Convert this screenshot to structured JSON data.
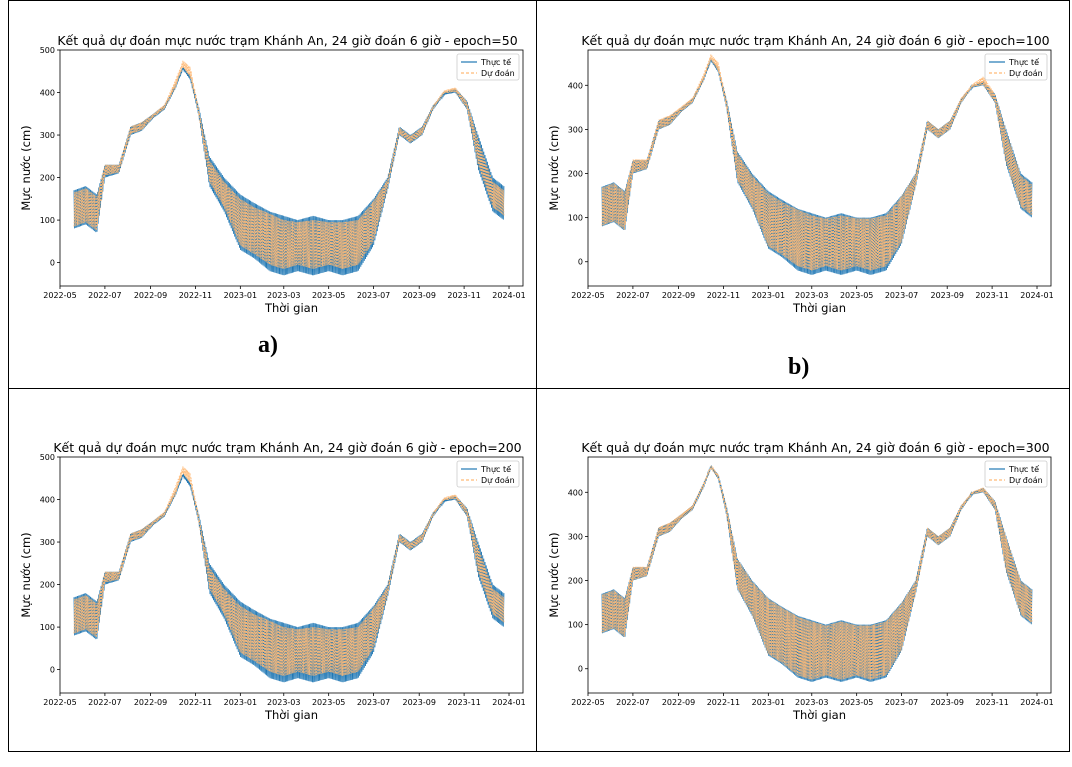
{
  "subfigure_labels": [
    "a)",
    "b)"
  ],
  "chart_data": [
    {
      "type": "line",
      "title": "Kết quả dự đoán mực nước trạm Khánh An, 24 giờ đoán 6 giờ - epoch=50",
      "xlabel": "Thời gian",
      "ylabel": "Mực nước (cm)",
      "xlim": [
        "2022-05-01",
        "2024-01-20"
      ],
      "ylim": [
        -55,
        500
      ],
      "x_ticks": [
        "2022-05",
        "2022-07",
        "2022-09",
        "2022-11",
        "2023-01",
        "2023-03",
        "2023-05",
        "2023-07",
        "2023-09",
        "2023-11",
        "2024-01"
      ],
      "y_ticks": [
        0,
        100,
        200,
        300,
        400,
        500
      ],
      "legend_position": "top-right",
      "series": [
        {
          "name": "Thực tế",
          "style": "solid",
          "color": "#1f77b4"
        },
        {
          "name": "Dự đoán",
          "style": "dashed",
          "color": "#ffbb78"
        }
      ],
      "x": [
        "2022-05-20",
        "2022-06-05",
        "2022-06-20",
        "2022-07-01",
        "2022-07-20",
        "2022-08-05",
        "2022-08-20",
        "2022-09-05",
        "2022-09-20",
        "2022-10-05",
        "2022-10-15",
        "2022-10-25",
        "2022-11-05",
        "2022-11-20",
        "2022-12-10",
        "2023-01-01",
        "2023-01-20",
        "2023-02-10",
        "2023-03-01",
        "2023-03-20",
        "2023-04-10",
        "2023-05-01",
        "2023-05-20",
        "2023-06-10",
        "2023-07-01",
        "2023-07-20",
        "2023-08-05",
        "2023-08-20",
        "2023-09-05",
        "2023-09-20",
        "2023-10-05",
        "2023-10-20",
        "2023-11-05",
        "2023-11-20",
        "2023-12-10",
        "2023-12-25"
      ],
      "actual_max": [
        170,
        180,
        160,
        230,
        230,
        320,
        330,
        350,
        370,
        420,
        460,
        440,
        370,
        250,
        200,
        160,
        140,
        120,
        110,
        100,
        110,
        100,
        100,
        110,
        150,
        200,
        320,
        300,
        320,
        370,
        400,
        410,
        380,
        300,
        200,
        180
      ],
      "actual_min": [
        80,
        90,
        70,
        200,
        210,
        300,
        310,
        340,
        360,
        410,
        455,
        430,
        350,
        180,
        120,
        30,
        10,
        -20,
        -30,
        -20,
        -30,
        -20,
        -30,
        -20,
        40,
        170,
        300,
        280,
        300,
        360,
        395,
        400,
        360,
        220,
        120,
        100
      ],
      "predicted_max": [
        165,
        175,
        155,
        230,
        230,
        320,
        330,
        350,
        372,
        430,
        475,
        460,
        365,
        240,
        190,
        150,
        130,
        115,
        100,
        95,
        100,
        95,
        95,
        100,
        145,
        195,
        318,
        298,
        318,
        370,
        405,
        412,
        378,
        290,
        190,
        170
      ],
      "predicted_min": [
        85,
        95,
        75,
        205,
        212,
        302,
        312,
        342,
        362,
        412,
        460,
        435,
        352,
        190,
        130,
        40,
        20,
        -5,
        -15,
        -5,
        -15,
        -5,
        -15,
        -5,
        50,
        175,
        302,
        282,
        302,
        362,
        398,
        402,
        362,
        230,
        130,
        110
      ]
    },
    {
      "type": "line",
      "title": "Kết quả dự đoán mực nước trạm Khánh An, 24 giờ đoán 6 giờ - epoch=100",
      "xlabel": "Thời gian",
      "ylabel": "Mực nước (cm)",
      "xlim": [
        "2022-05-01",
        "2024-01-20"
      ],
      "ylim": [
        -55,
        480
      ],
      "x_ticks": [
        "2022-05",
        "2022-07",
        "2022-09",
        "2022-11",
        "2023-01",
        "2023-03",
        "2023-05",
        "2023-07",
        "2023-09",
        "2023-11",
        "2024-01"
      ],
      "y_ticks": [
        0,
        100,
        200,
        300,
        400
      ],
      "legend_position": "top-right",
      "series": [
        {
          "name": "Thực tế",
          "style": "solid",
          "color": "#1f77b4"
        },
        {
          "name": "Dự đoán",
          "style": "dashed",
          "color": "#ffbb78"
        }
      ],
      "x": [
        "2022-05-20",
        "2022-06-05",
        "2022-06-20",
        "2022-07-01",
        "2022-07-20",
        "2022-08-05",
        "2022-08-20",
        "2022-09-05",
        "2022-09-20",
        "2022-10-05",
        "2022-10-15",
        "2022-10-25",
        "2022-11-05",
        "2022-11-20",
        "2022-12-10",
        "2023-01-01",
        "2023-01-20",
        "2023-02-10",
        "2023-03-01",
        "2023-03-20",
        "2023-04-10",
        "2023-05-01",
        "2023-05-20",
        "2023-06-10",
        "2023-07-01",
        "2023-07-20",
        "2023-08-05",
        "2023-08-20",
        "2023-09-05",
        "2023-09-20",
        "2023-10-05",
        "2023-10-20",
        "2023-11-05",
        "2023-11-20",
        "2023-12-10",
        "2023-12-25"
      ],
      "actual_max": [
        170,
        180,
        160,
        230,
        230,
        320,
        330,
        350,
        370,
        420,
        460,
        440,
        370,
        250,
        200,
        160,
        140,
        120,
        110,
        100,
        110,
        100,
        100,
        110,
        150,
        200,
        320,
        300,
        320,
        370,
        400,
        410,
        380,
        300,
        200,
        180
      ],
      "actual_min": [
        80,
        90,
        70,
        200,
        210,
        300,
        310,
        340,
        360,
        410,
        455,
        430,
        350,
        180,
        120,
        30,
        10,
        -20,
        -30,
        -20,
        -30,
        -20,
        -30,
        -20,
        40,
        170,
        300,
        280,
        300,
        360,
        395,
        400,
        360,
        220,
        120,
        100
      ],
      "predicted_max": [
        168,
        178,
        158,
        232,
        232,
        322,
        332,
        352,
        372,
        425,
        470,
        452,
        368,
        245,
        195,
        155,
        135,
        118,
        105,
        98,
        105,
        98,
        98,
        105,
        148,
        198,
        320,
        300,
        320,
        372,
        402,
        420,
        380,
        295,
        195,
        175
      ],
      "predicted_min": [
        82,
        92,
        72,
        202,
        211,
        301,
        311,
        341,
        361,
        411,
        458,
        432,
        351,
        185,
        125,
        35,
        15,
        -10,
        -20,
        -10,
        -20,
        -10,
        -20,
        -10,
        45,
        172,
        301,
        281,
        301,
        361,
        396,
        401,
        361,
        225,
        125,
        105
      ]
    },
    {
      "type": "line",
      "title": "Kết quả dự đoán mực nước trạm Khánh An, 24 giờ đoán 6 giờ - epoch=200",
      "xlabel": "Thời gian",
      "ylabel": "Mực nước (cm)",
      "xlim": [
        "2022-05-01",
        "2024-01-20"
      ],
      "ylim": [
        -55,
        500
      ],
      "x_ticks": [
        "2022-05",
        "2022-07",
        "2022-09",
        "2022-11",
        "2023-01",
        "2023-03",
        "2023-05",
        "2023-07",
        "2023-09",
        "2023-11",
        "2024-01"
      ],
      "y_ticks": [
        0,
        100,
        200,
        300,
        400,
        500
      ],
      "legend_position": "top-right",
      "series": [
        {
          "name": "Thực tế",
          "style": "solid",
          "color": "#1f77b4"
        },
        {
          "name": "Dự đoán",
          "style": "dashed",
          "color": "#ffbb78"
        }
      ],
      "x": [
        "2022-05-20",
        "2022-06-05",
        "2022-06-20",
        "2022-07-01",
        "2022-07-20",
        "2022-08-05",
        "2022-08-20",
        "2022-09-05",
        "2022-09-20",
        "2022-10-05",
        "2022-10-15",
        "2022-10-25",
        "2022-11-05",
        "2022-11-20",
        "2022-12-10",
        "2023-01-01",
        "2023-01-20",
        "2023-02-10",
        "2023-03-01",
        "2023-03-20",
        "2023-04-10",
        "2023-05-01",
        "2023-05-20",
        "2023-06-10",
        "2023-07-01",
        "2023-07-20",
        "2023-08-05",
        "2023-08-20",
        "2023-09-05",
        "2023-09-20",
        "2023-10-05",
        "2023-10-20",
        "2023-11-05",
        "2023-11-20",
        "2023-12-10",
        "2023-12-25"
      ],
      "actual_max": [
        170,
        180,
        160,
        230,
        230,
        320,
        330,
        350,
        370,
        420,
        460,
        440,
        370,
        250,
        200,
        160,
        140,
        120,
        110,
        100,
        110,
        100,
        100,
        110,
        150,
        200,
        320,
        300,
        320,
        370,
        400,
        410,
        380,
        300,
        200,
        180
      ],
      "actual_min": [
        80,
        90,
        70,
        200,
        210,
        300,
        310,
        340,
        360,
        410,
        455,
        430,
        350,
        180,
        120,
        30,
        10,
        -20,
        -30,
        -20,
        -30,
        -20,
        -30,
        -20,
        40,
        170,
        300,
        280,
        300,
        360,
        395,
        400,
        360,
        220,
        120,
        100
      ],
      "predicted_max": [
        165,
        175,
        155,
        230,
        230,
        320,
        330,
        350,
        372,
        432,
        478,
        462,
        365,
        240,
        190,
        150,
        130,
        115,
        100,
        95,
        100,
        95,
        95,
        100,
        145,
        195,
        318,
        298,
        318,
        370,
        405,
        412,
        378,
        290,
        190,
        170
      ],
      "predicted_min": [
        85,
        95,
        75,
        205,
        212,
        302,
        312,
        342,
        362,
        412,
        462,
        437,
        352,
        190,
        130,
        40,
        20,
        -5,
        -15,
        -5,
        -15,
        -5,
        -15,
        -5,
        50,
        175,
        302,
        282,
        302,
        362,
        398,
        402,
        362,
        230,
        130,
        110
      ]
    },
    {
      "type": "line",
      "title": "Kết quả dự đoán mực nước trạm Khánh An, 24 giờ đoán 6 giờ - epoch=300",
      "xlabel": "Thời gian",
      "ylabel": "Mực nước (cm)",
      "xlim": [
        "2022-05-01",
        "2024-01-20"
      ],
      "ylim": [
        -55,
        480
      ],
      "x_ticks": [
        "2022-05",
        "2022-07",
        "2022-09",
        "2022-11",
        "2023-01",
        "2023-03",
        "2023-05",
        "2023-07",
        "2023-09",
        "2023-11",
        "2024-01"
      ],
      "y_ticks": [
        0,
        100,
        200,
        300,
        400
      ],
      "legend_position": "top-right",
      "series": [
        {
          "name": "Thực tế",
          "style": "solid",
          "color": "#1f77b4"
        },
        {
          "name": "Dự đoán",
          "style": "dashed",
          "color": "#ffbb78"
        }
      ],
      "x": [
        "2022-05-20",
        "2022-06-05",
        "2022-06-20",
        "2022-07-01",
        "2022-07-20",
        "2022-08-05",
        "2022-08-20",
        "2022-09-05",
        "2022-09-20",
        "2022-10-05",
        "2022-10-15",
        "2022-10-25",
        "2022-11-05",
        "2022-11-20",
        "2022-12-10",
        "2023-01-01",
        "2023-01-20",
        "2023-02-10",
        "2023-03-01",
        "2023-03-20",
        "2023-04-10",
        "2023-05-01",
        "2023-05-20",
        "2023-06-10",
        "2023-07-01",
        "2023-07-20",
        "2023-08-05",
        "2023-08-20",
        "2023-09-05",
        "2023-09-20",
        "2023-10-05",
        "2023-10-20",
        "2023-11-05",
        "2023-11-20",
        "2023-12-10",
        "2023-12-25"
      ],
      "actual_max": [
        170,
        180,
        160,
        230,
        230,
        320,
        330,
        350,
        370,
        420,
        460,
        440,
        370,
        250,
        200,
        160,
        140,
        120,
        110,
        100,
        110,
        100,
        100,
        110,
        150,
        200,
        320,
        300,
        320,
        370,
        400,
        410,
        380,
        300,
        200,
        180
      ],
      "actual_min": [
        80,
        90,
        70,
        200,
        210,
        300,
        310,
        340,
        360,
        410,
        455,
        430,
        350,
        180,
        120,
        30,
        10,
        -20,
        -30,
        -20,
        -30,
        -20,
        -30,
        -20,
        40,
        170,
        300,
        280,
        300,
        360,
        395,
        400,
        360,
        220,
        120,
        100
      ],
      "predicted_max": [
        168,
        178,
        158,
        231,
        231,
        321,
        331,
        351,
        371,
        421,
        460,
        441,
        369,
        248,
        197,
        158,
        138,
        118,
        107,
        98,
        107,
        98,
        98,
        107,
        148,
        198,
        320,
        300,
        320,
        371,
        401,
        411,
        379,
        298,
        198,
        178
      ],
      "predicted_min": [
        82,
        92,
        72,
        201,
        211,
        301,
        311,
        341,
        361,
        411,
        456,
        431,
        351,
        183,
        123,
        33,
        13,
        -15,
        -25,
        -15,
        -25,
        -15,
        -25,
        -15,
        43,
        171,
        301,
        281,
        301,
        361,
        396,
        401,
        361,
        223,
        123,
        103
      ]
    }
  ]
}
